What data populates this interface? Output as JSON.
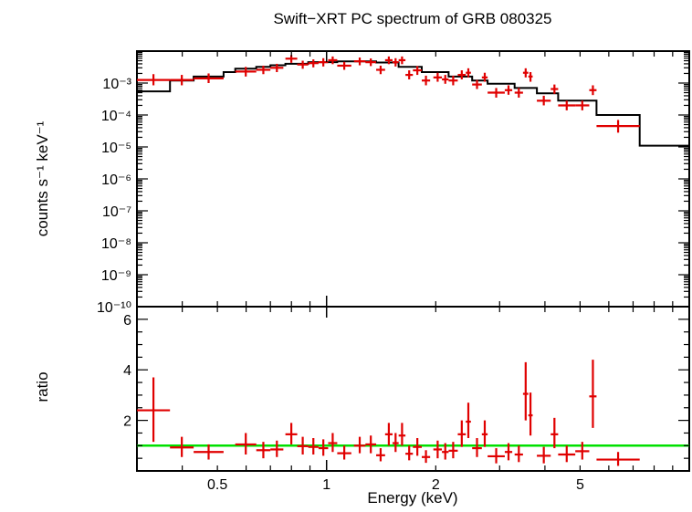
{
  "chart_data": {
    "type": "scatter",
    "title": "Swift−XRT PC spectrum of GRB 080325",
    "xlabel": "Energy (keV)",
    "xscale": "log",
    "xlim": [
      0.3,
      10
    ],
    "x_ticks": [
      {
        "value": 0.5,
        "label": "0.5"
      },
      {
        "value": 1,
        "label": "1"
      },
      {
        "value": 2,
        "label": "2"
      },
      {
        "value": 5,
        "label": "5"
      }
    ],
    "colors": {
      "data": "#e00000",
      "model": "#000000",
      "unity": "#00e000"
    },
    "top_panel": {
      "ylabel": "counts s⁻¹ keV⁻¹",
      "yscale": "log",
      "ylim": [
        1e-10,
        0.01
      ],
      "y_ticks": [
        {
          "value": 0.001,
          "label": "10⁻³"
        },
        {
          "value": 0.0001,
          "label": "10⁻⁴"
        },
        {
          "value": 1e-05,
          "label": "10⁻⁵"
        },
        {
          "value": 1e-06,
          "label": "10⁻⁶"
        },
        {
          "value": 1e-07,
          "label": "10⁻⁷"
        },
        {
          "value": 1e-08,
          "label": "10⁻⁸"
        },
        {
          "value": 1e-09,
          "label": "10⁻⁹"
        },
        {
          "value": 1e-10,
          "label": "10⁻¹⁰"
        }
      ],
      "data": [
        {
          "xlo": 0.3,
          "xhi": 0.37,
          "y": 0.00125,
          "ylo": 0.00085,
          "yhi": 0.0019
        },
        {
          "xlo": 0.37,
          "xhi": 0.43,
          "y": 0.00125,
          "ylo": 0.00085,
          "yhi": 0.0018
        },
        {
          "xlo": 0.43,
          "xhi": 0.52,
          "y": 0.0014,
          "ylo": 0.001,
          "yhi": 0.002
        },
        {
          "xlo": 0.56,
          "xhi": 0.64,
          "y": 0.0023,
          "ylo": 0.0016,
          "yhi": 0.0032
        },
        {
          "xlo": 0.64,
          "xhi": 0.7,
          "y": 0.0026,
          "ylo": 0.0019,
          "yhi": 0.0035
        },
        {
          "xlo": 0.7,
          "xhi": 0.76,
          "y": 0.003,
          "ylo": 0.0022,
          "yhi": 0.004
        },
        {
          "xlo": 0.77,
          "xhi": 0.83,
          "y": 0.0058,
          "ylo": 0.0043,
          "yhi": 0.0075
        },
        {
          "xlo": 0.83,
          "xhi": 0.89,
          "y": 0.0038,
          "ylo": 0.0028,
          "yhi": 0.005
        },
        {
          "xlo": 0.89,
          "xhi": 0.95,
          "y": 0.0042,
          "ylo": 0.0031,
          "yhi": 0.0055
        },
        {
          "xlo": 0.95,
          "xhi": 1.01,
          "y": 0.0045,
          "ylo": 0.0033,
          "yhi": 0.006
        },
        {
          "xlo": 1.01,
          "xhi": 1.07,
          "y": 0.0052,
          "ylo": 0.0039,
          "yhi": 0.0068
        },
        {
          "xlo": 1.07,
          "xhi": 1.17,
          "y": 0.0035,
          "ylo": 0.0026,
          "yhi": 0.0046
        },
        {
          "xlo": 1.19,
          "xhi": 1.28,
          "y": 0.0048,
          "ylo": 0.0036,
          "yhi": 0.0063
        },
        {
          "xlo": 1.28,
          "xhi": 1.37,
          "y": 0.0045,
          "ylo": 0.0034,
          "yhi": 0.0059
        },
        {
          "xlo": 1.37,
          "xhi": 1.45,
          "y": 0.0026,
          "ylo": 0.0019,
          "yhi": 0.0035
        },
        {
          "xlo": 1.45,
          "xhi": 1.52,
          "y": 0.0052,
          "ylo": 0.0039,
          "yhi": 0.0068
        },
        {
          "xlo": 1.52,
          "xhi": 1.58,
          "y": 0.0045,
          "ylo": 0.0033,
          "yhi": 0.006
        },
        {
          "xlo": 1.58,
          "xhi": 1.65,
          "y": 0.0052,
          "ylo": 0.0039,
          "yhi": 0.0068
        },
        {
          "xlo": 1.65,
          "xhi": 1.73,
          "y": 0.0018,
          "ylo": 0.0013,
          "yhi": 0.0025
        },
        {
          "xlo": 1.73,
          "xhi": 1.83,
          "y": 0.0025,
          "ylo": 0.0018,
          "yhi": 0.0034
        },
        {
          "xlo": 1.83,
          "xhi": 1.93,
          "y": 0.0012,
          "ylo": 0.00085,
          "yhi": 0.0017
        },
        {
          "xlo": 1.97,
          "xhi": 2.08,
          "y": 0.0015,
          "ylo": 0.0011,
          "yhi": 0.0021
        },
        {
          "xlo": 2.08,
          "xhi": 2.17,
          "y": 0.0013,
          "ylo": 0.00095,
          "yhi": 0.0018
        },
        {
          "xlo": 2.17,
          "xhi": 2.3,
          "y": 0.0012,
          "ylo": 0.00085,
          "yhi": 0.0017
        },
        {
          "xlo": 2.3,
          "xhi": 2.42,
          "y": 0.0018,
          "ylo": 0.0013,
          "yhi": 0.0025
        },
        {
          "xlo": 2.42,
          "xhi": 2.5,
          "y": 0.0021,
          "ylo": 0.0015,
          "yhi": 0.0029
        },
        {
          "xlo": 2.52,
          "xhi": 2.68,
          "y": 0.0009,
          "ylo": 0.00065,
          "yhi": 0.00125
        },
        {
          "xlo": 2.68,
          "xhi": 2.78,
          "y": 0.0015,
          "ylo": 0.0011,
          "yhi": 0.0021
        },
        {
          "xlo": 2.78,
          "xhi": 3.1,
          "y": 0.0005,
          "ylo": 0.00035,
          "yhi": 0.0007
        },
        {
          "xlo": 3.1,
          "xhi": 3.25,
          "y": 0.0006,
          "ylo": 0.00043,
          "yhi": 0.00085
        },
        {
          "xlo": 3.3,
          "xhi": 3.48,
          "y": 0.0005,
          "ylo": 0.00035,
          "yhi": 0.0007
        },
        {
          "xlo": 3.48,
          "xhi": 3.6,
          "y": 0.0021,
          "ylo": 0.0015,
          "yhi": 0.0029
        },
        {
          "xlo": 3.6,
          "xhi": 3.7,
          "y": 0.0016,
          "ylo": 0.0011,
          "yhi": 0.0022
        },
        {
          "xlo": 3.8,
          "xhi": 4.15,
          "y": 0.00028,
          "ylo": 0.0002,
          "yhi": 0.0004
        },
        {
          "xlo": 4.15,
          "xhi": 4.35,
          "y": 0.00065,
          "ylo": 0.00046,
          "yhi": 0.0009
        },
        {
          "xlo": 4.35,
          "xhi": 4.85,
          "y": 0.0002,
          "ylo": 0.00014,
          "yhi": 0.00028
        },
        {
          "xlo": 4.85,
          "xhi": 5.3,
          "y": 0.0002,
          "ylo": 0.00014,
          "yhi": 0.00028
        },
        {
          "xlo": 5.3,
          "xhi": 5.55,
          "y": 0.0006,
          "ylo": 0.00042,
          "yhi": 0.00085
        },
        {
          "xlo": 5.55,
          "xhi": 7.3,
          "y": 4.5e-05,
          "ylo": 2.8e-05,
          "yhi": 7e-05
        }
      ],
      "model_steps": [
        {
          "xlo": 0.3,
          "xhi": 0.37,
          "y": 0.00055
        },
        {
          "xlo": 0.37,
          "xhi": 0.43,
          "y": 0.0012
        },
        {
          "xlo": 0.43,
          "xhi": 0.52,
          "y": 0.0016
        },
        {
          "xlo": 0.52,
          "xhi": 0.56,
          "y": 0.0022
        },
        {
          "xlo": 0.56,
          "xhi": 0.64,
          "y": 0.0028
        },
        {
          "xlo": 0.64,
          "xhi": 0.7,
          "y": 0.0032
        },
        {
          "xlo": 0.7,
          "xhi": 0.77,
          "y": 0.0036
        },
        {
          "xlo": 0.77,
          "xhi": 0.89,
          "y": 0.004
        },
        {
          "xlo": 0.89,
          "xhi": 1.07,
          "y": 0.0045
        },
        {
          "xlo": 1.07,
          "xhi": 1.37,
          "y": 0.0048
        },
        {
          "xlo": 1.37,
          "xhi": 1.58,
          "y": 0.0044
        },
        {
          "xlo": 1.58,
          "xhi": 1.83,
          "y": 0.0032
        },
        {
          "xlo": 1.83,
          "xhi": 2.17,
          "y": 0.0022
        },
        {
          "xlo": 2.17,
          "xhi": 2.52,
          "y": 0.0016
        },
        {
          "xlo": 2.52,
          "xhi": 2.78,
          "y": 0.0012
        },
        {
          "xlo": 2.78,
          "xhi": 3.3,
          "y": 0.00095
        },
        {
          "xlo": 3.3,
          "xhi": 3.8,
          "y": 0.0007
        },
        {
          "xlo": 3.8,
          "xhi": 4.35,
          "y": 0.00048
        },
        {
          "xlo": 4.35,
          "xhi": 5.55,
          "y": 0.00028
        },
        {
          "xlo": 5.55,
          "xhi": 7.3,
          "y": 0.0001
        },
        {
          "xlo": 7.3,
          "xhi": 10,
          "y": 1.1e-05
        }
      ]
    },
    "bottom_panel": {
      "ylabel": "ratio",
      "yscale": "linear",
      "ylim": [
        0,
        6.5
      ],
      "y_ticks": [
        {
          "value": 2,
          "label": "2"
        },
        {
          "value": 4,
          "label": "4"
        },
        {
          "value": 6,
          "label": "6"
        }
      ],
      "reference_line": 1,
      "data": [
        {
          "xlo": 0.3,
          "xhi": 0.37,
          "y": 2.4,
          "ylo": 1.15,
          "yhi": 3.7
        },
        {
          "xlo": 0.37,
          "xhi": 0.43,
          "y": 0.93,
          "ylo": 0.55,
          "yhi": 1.35
        },
        {
          "xlo": 0.43,
          "xhi": 0.52,
          "y": 0.75,
          "ylo": 0.45,
          "yhi": 1.05
        },
        {
          "xlo": 0.56,
          "xhi": 0.64,
          "y": 1.05,
          "ylo": 0.65,
          "yhi": 1.5
        },
        {
          "xlo": 0.64,
          "xhi": 0.7,
          "y": 0.82,
          "ylo": 0.5,
          "yhi": 1.15
        },
        {
          "xlo": 0.7,
          "xhi": 0.76,
          "y": 0.85,
          "ylo": 0.55,
          "yhi": 1.2
        },
        {
          "xlo": 0.77,
          "xhi": 0.83,
          "y": 1.45,
          "ylo": 1.05,
          "yhi": 1.9
        },
        {
          "xlo": 0.83,
          "xhi": 0.89,
          "y": 0.98,
          "ylo": 0.65,
          "yhi": 1.35
        },
        {
          "xlo": 0.89,
          "xhi": 0.95,
          "y": 0.95,
          "ylo": 0.65,
          "yhi": 1.3
        },
        {
          "xlo": 0.95,
          "xhi": 1.01,
          "y": 0.9,
          "ylo": 0.6,
          "yhi": 1.25
        },
        {
          "xlo": 1.01,
          "xhi": 1.07,
          "y": 1.1,
          "ylo": 0.75,
          "yhi": 1.5
        },
        {
          "xlo": 1.07,
          "xhi": 1.17,
          "y": 0.7,
          "ylo": 0.45,
          "yhi": 1.0
        },
        {
          "xlo": 1.19,
          "xhi": 1.28,
          "y": 1.0,
          "ylo": 0.7,
          "yhi": 1.35
        },
        {
          "xlo": 1.28,
          "xhi": 1.37,
          "y": 1.05,
          "ylo": 0.7,
          "yhi": 1.4
        },
        {
          "xlo": 1.37,
          "xhi": 1.45,
          "y": 0.62,
          "ylo": 0.38,
          "yhi": 0.9
        },
        {
          "xlo": 1.45,
          "xhi": 1.52,
          "y": 1.45,
          "ylo": 1.0,
          "yhi": 1.9
        },
        {
          "xlo": 1.52,
          "xhi": 1.58,
          "y": 1.1,
          "ylo": 0.75,
          "yhi": 1.5
        },
        {
          "xlo": 1.58,
          "xhi": 1.65,
          "y": 1.4,
          "ylo": 1.0,
          "yhi": 1.9
        },
        {
          "xlo": 1.65,
          "xhi": 1.73,
          "y": 0.68,
          "ylo": 0.42,
          "yhi": 1.0
        },
        {
          "xlo": 1.73,
          "xhi": 1.83,
          "y": 0.95,
          "ylo": 0.6,
          "yhi": 1.3
        },
        {
          "xlo": 1.83,
          "xhi": 1.93,
          "y": 0.55,
          "ylo": 0.32,
          "yhi": 0.82
        },
        {
          "xlo": 1.97,
          "xhi": 2.08,
          "y": 0.85,
          "ylo": 0.5,
          "yhi": 1.2
        },
        {
          "xlo": 2.08,
          "xhi": 2.17,
          "y": 0.75,
          "ylo": 0.45,
          "yhi": 1.1
        },
        {
          "xlo": 2.17,
          "xhi": 2.3,
          "y": 0.8,
          "ylo": 0.5,
          "yhi": 1.15
        },
        {
          "xlo": 2.3,
          "xhi": 2.42,
          "y": 1.45,
          "ylo": 0.95,
          "yhi": 2.0
        },
        {
          "xlo": 2.42,
          "xhi": 2.5,
          "y": 1.95,
          "ylo": 1.3,
          "yhi": 2.7
        },
        {
          "xlo": 2.52,
          "xhi": 2.68,
          "y": 0.9,
          "ylo": 0.55,
          "yhi": 1.3
        },
        {
          "xlo": 2.68,
          "xhi": 2.78,
          "y": 1.45,
          "ylo": 0.95,
          "yhi": 2.0
        },
        {
          "xlo": 2.78,
          "xhi": 3.1,
          "y": 0.58,
          "ylo": 0.3,
          "yhi": 0.9
        },
        {
          "xlo": 3.1,
          "xhi": 3.25,
          "y": 0.75,
          "ylo": 0.42,
          "yhi": 1.1
        },
        {
          "xlo": 3.3,
          "xhi": 3.48,
          "y": 0.65,
          "ylo": 0.35,
          "yhi": 1.0
        },
        {
          "xlo": 3.48,
          "xhi": 3.6,
          "y": 3.05,
          "ylo": 2.0,
          "yhi": 4.3
        },
        {
          "xlo": 3.6,
          "xhi": 3.7,
          "y": 2.2,
          "ylo": 1.4,
          "yhi": 3.1
        },
        {
          "xlo": 3.8,
          "xhi": 4.15,
          "y": 0.6,
          "ylo": 0.3,
          "yhi": 0.95
        },
        {
          "xlo": 4.15,
          "xhi": 4.35,
          "y": 1.45,
          "ylo": 0.9,
          "yhi": 2.1
        },
        {
          "xlo": 4.35,
          "xhi": 4.85,
          "y": 0.65,
          "ylo": 0.35,
          "yhi": 1.0
        },
        {
          "xlo": 4.85,
          "xhi": 5.3,
          "y": 0.78,
          "ylo": 0.45,
          "yhi": 1.15
        },
        {
          "xlo": 5.3,
          "xhi": 5.55,
          "y": 2.95,
          "ylo": 1.7,
          "yhi": 4.4
        },
        {
          "xlo": 5.55,
          "xhi": 7.3,
          "y": 0.45,
          "ylo": 0.2,
          "yhi": 0.75
        }
      ]
    }
  }
}
